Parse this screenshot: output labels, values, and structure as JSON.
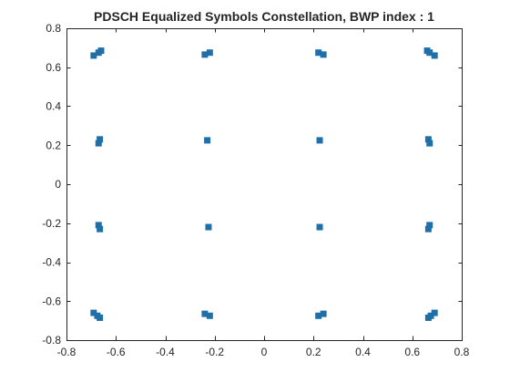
{
  "chart_data": {
    "type": "scatter",
    "title": "PDSCH Equalized Symbols Constellation, BWP index : 1",
    "xlabel": "",
    "ylabel": "",
    "xlim": [
      -0.8,
      0.8
    ],
    "ylim": [
      -0.8,
      0.8
    ],
    "xticks": [
      -0.8,
      -0.6,
      -0.4,
      -0.2,
      0,
      0.2,
      0.4,
      0.6,
      0.8
    ],
    "yticks": [
      -0.8,
      -0.6,
      -0.4,
      -0.2,
      0,
      0.2,
      0.4,
      0.6,
      0.8
    ],
    "xtick_labels": [
      "-0.8",
      "-0.6",
      "-0.4",
      "-0.2",
      "0",
      "0.2",
      "0.4",
      "0.6",
      "0.8"
    ],
    "ytick_labels": [
      "-0.8",
      "-0.6",
      "-0.4",
      "-0.2",
      "0",
      "0.2",
      "0.4",
      "0.6",
      "0.8"
    ],
    "grid": false,
    "marker_color": "#1f6fa8",
    "series": [
      {
        "points": [
          [
            -0.69,
            0.66
          ],
          [
            -0.67,
            0.675
          ],
          [
            -0.66,
            0.685
          ],
          [
            -0.24,
            0.665
          ],
          [
            -0.22,
            0.675
          ],
          [
            0.22,
            0.675
          ],
          [
            0.24,
            0.665
          ],
          [
            0.66,
            0.685
          ],
          [
            0.67,
            0.675
          ],
          [
            0.69,
            0.66
          ],
          [
            -0.67,
            0.21
          ],
          [
            -0.665,
            0.23
          ],
          [
            -0.23,
            0.225
          ],
          [
            0.225,
            0.225
          ],
          [
            0.665,
            0.23
          ],
          [
            0.67,
            0.21
          ],
          [
            -0.67,
            -0.21
          ],
          [
            -0.665,
            -0.23
          ],
          [
            -0.225,
            -0.22
          ],
          [
            0.225,
            -0.22
          ],
          [
            0.665,
            -0.23
          ],
          [
            0.67,
            -0.21
          ],
          [
            -0.69,
            -0.66
          ],
          [
            -0.675,
            -0.675
          ],
          [
            -0.665,
            -0.685
          ],
          [
            -0.24,
            -0.665
          ],
          [
            -0.22,
            -0.675
          ],
          [
            0.22,
            -0.675
          ],
          [
            0.24,
            -0.665
          ],
          [
            0.665,
            -0.685
          ],
          [
            0.675,
            -0.675
          ],
          [
            0.69,
            -0.66
          ]
        ]
      }
    ]
  }
}
